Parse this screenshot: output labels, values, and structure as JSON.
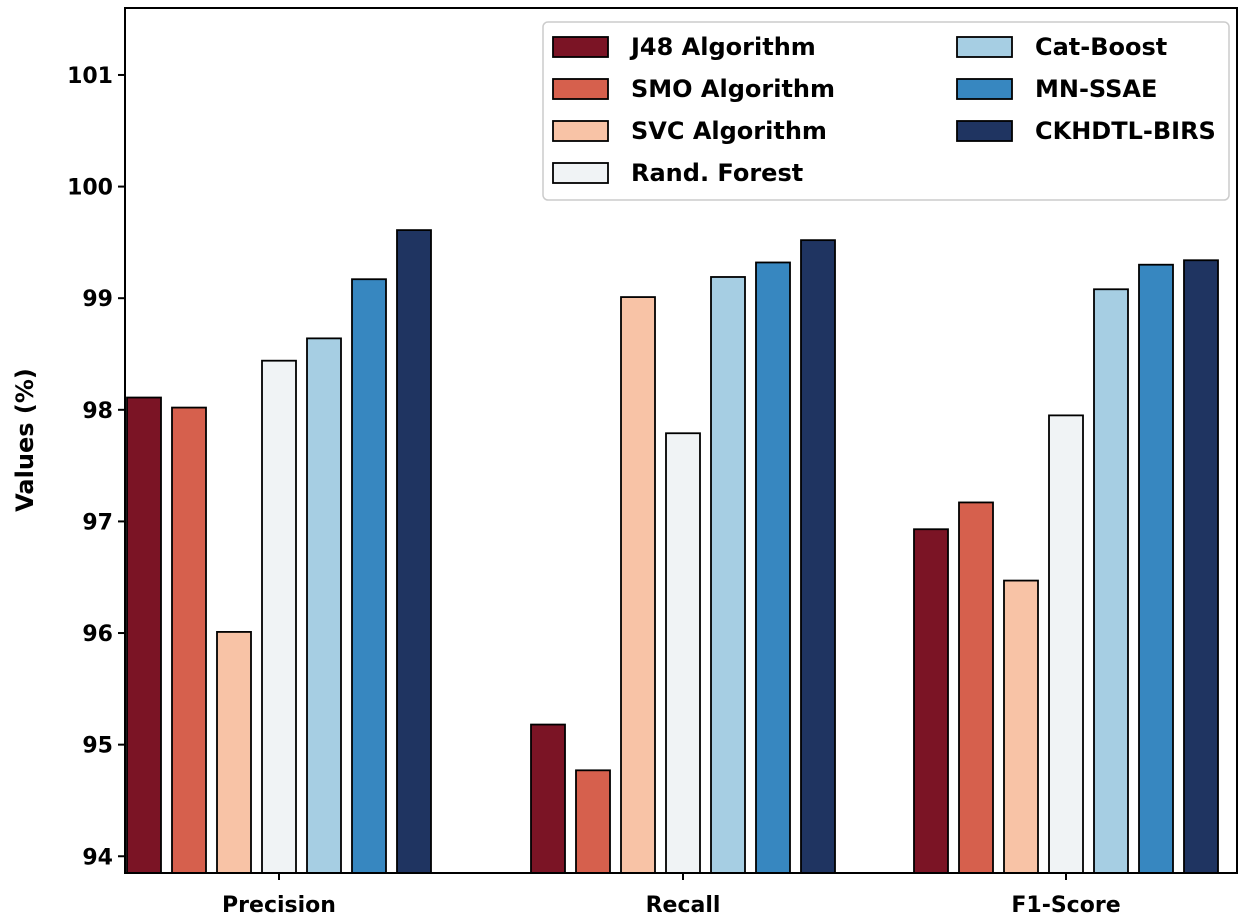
{
  "chart_data": {
    "type": "bar",
    "title": "",
    "xlabel": "",
    "ylabel": "Values (%)",
    "ylim": [
      93.85,
      101.6
    ],
    "yticks": [
      94,
      95,
      96,
      97,
      98,
      99,
      100,
      101
    ],
    "categories": [
      "Precision",
      "Recall",
      "F1-Score"
    ],
    "legend_position": "top-right",
    "legend_columns": 2,
    "grid": false,
    "series": [
      {
        "name": "J48 Algorithm",
        "color": "#7b1425",
        "values": [
          98.11,
          95.18,
          96.93
        ]
      },
      {
        "name": "SMO Algorithm",
        "color": "#d6604d",
        "values": [
          98.02,
          94.77,
          97.17
        ]
      },
      {
        "name": "SVC Algorithm",
        "color": "#f8c3a6",
        "values": [
          96.01,
          99.01,
          96.47
        ]
      },
      {
        "name": "Rand. Forest",
        "color": "#f0f3f5",
        "values": [
          98.44,
          97.79,
          97.95
        ]
      },
      {
        "name": "Cat-Boost",
        "color": "#a6cee3",
        "values": [
          98.64,
          99.19,
          99.08
        ]
      },
      {
        "name": "MN-SSAE",
        "color": "#3787c0",
        "values": [
          99.17,
          99.32,
          99.3
        ]
      },
      {
        "name": "CKHDTL-BIRS",
        "color": "#1f3461",
        "values": [
          99.61,
          99.52,
          99.34
        ]
      }
    ]
  }
}
